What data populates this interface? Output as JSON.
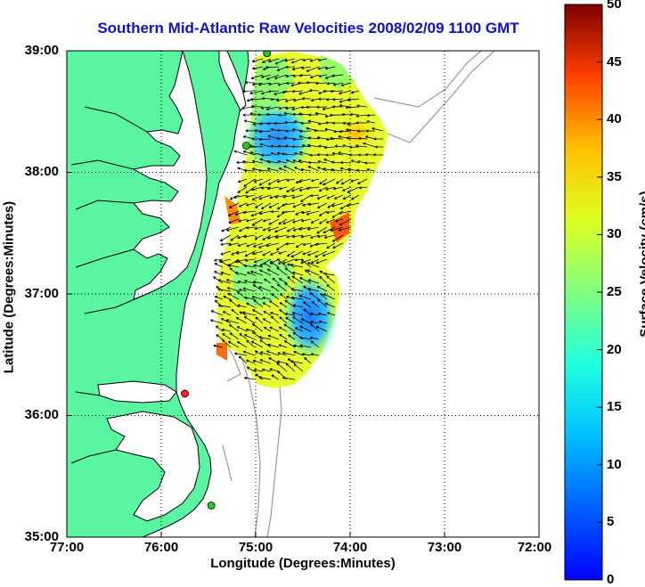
{
  "title": "Southern Mid-Atlantic Raw Velocities 2008/02/09 1100 GMT",
  "xlabel": "Longitude (Degrees:Minutes)",
  "ylabel": "Latitude (Degrees:Minutes)",
  "x_ticks": [
    "77:00",
    "76:00",
    "75:00",
    "74:00",
    "73:00",
    "72:00"
  ],
  "y_ticks": [
    "39:00",
    "38:00",
    "37:00",
    "36:00",
    "35:00"
  ],
  "colorbar": {
    "label": "Surface Velocity (cm/s)",
    "ticks": [
      "0",
      "5",
      "10",
      "15",
      "20",
      "25",
      "30",
      "35",
      "40",
      "45",
      "50"
    ],
    "range": [
      0,
      50
    ]
  },
  "colors": {
    "land": "#5af5a0",
    "title": "#1010d8",
    "bathymetry": "#9a9a9a",
    "grid": "#000000"
  },
  "chart_data": {
    "type": "heatmap",
    "xlim": [
      -77,
      -72
    ],
    "ylim": [
      35,
      39
    ],
    "grid": true,
    "stations": [
      {
        "lon": -74.88,
        "lat": 38.98,
        "color": "#22cc22"
      },
      {
        "lon": -75.1,
        "lat": 38.22,
        "color": "#22cc22"
      },
      {
        "lon": -75.75,
        "lat": 36.18,
        "color": "#ee2222"
      },
      {
        "lon": -75.47,
        "lat": 35.26,
        "color": "#22cc22"
      }
    ]
  }
}
